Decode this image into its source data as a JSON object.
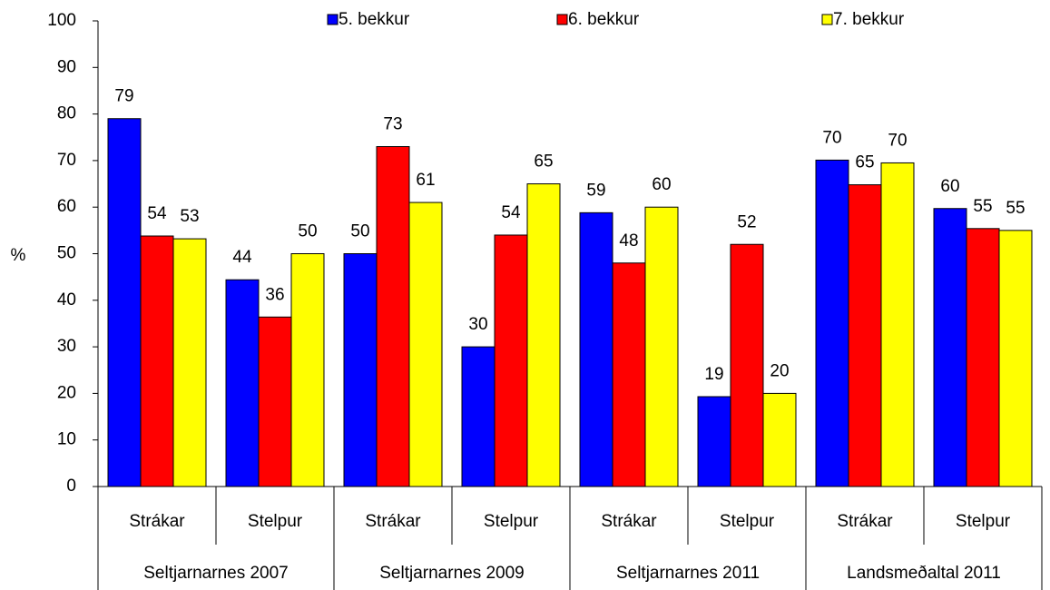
{
  "chart_data": {
    "type": "bar",
    "y_label": "%",
    "categories": [
      "Strákar",
      "Stelpur",
      "Strákar",
      "Stelpur",
      "Strákar",
      "Stelpur",
      "Strákar",
      "Stelpur"
    ],
    "groups": [
      "Seltjarnarnes 2007",
      "Seltjarnarnes 2009",
      "Seltjarnarnes 2011",
      "Landsmeðaltal 2011"
    ],
    "series": [
      {
        "name": "5. bekkur",
        "color": "#0000ff",
        "values": [
          79,
          44.4,
          50,
          30,
          58.8,
          19.3,
          70.1,
          59.7
        ],
        "value_labels": [
          "79",
          "44",
          "50",
          "30",
          "59",
          "19",
          "70",
          "60"
        ]
      },
      {
        "name": "6. bekkur",
        "color": "#ff0000",
        "values": [
          53.8,
          36.4,
          73,
          54,
          48,
          52,
          64.8,
          55.4
        ],
        "value_labels": [
          "54",
          "36",
          "73",
          "54",
          "48",
          "52",
          "65",
          "55"
        ]
      },
      {
        "name": "7. bekkur",
        "color": "#ffff00",
        "values": [
          53.2,
          50,
          61,
          65,
          60,
          20,
          69.5,
          55
        ],
        "value_labels": [
          "53",
          "50",
          "61",
          "65",
          "60",
          "20",
          "70",
          "55"
        ]
      }
    ],
    "ylim": [
      0,
      100
    ],
    "yticks": [
      0,
      10,
      20,
      30,
      40,
      50,
      60,
      70,
      80,
      90,
      100
    ],
    "grid": false,
    "legend": "top"
  }
}
